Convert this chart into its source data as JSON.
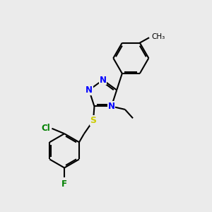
{
  "bg_color": "#ebebeb",
  "bond_color": "#000000",
  "n_color": "#0000ff",
  "s_color": "#cccc00",
  "cl_color": "#008000",
  "f_color": "#008000",
  "line_width": 1.5,
  "figsize": [
    3.0,
    3.0
  ],
  "dpi": 100,
  "xlim": [
    0,
    10
  ],
  "ylim": [
    0,
    10
  ]
}
